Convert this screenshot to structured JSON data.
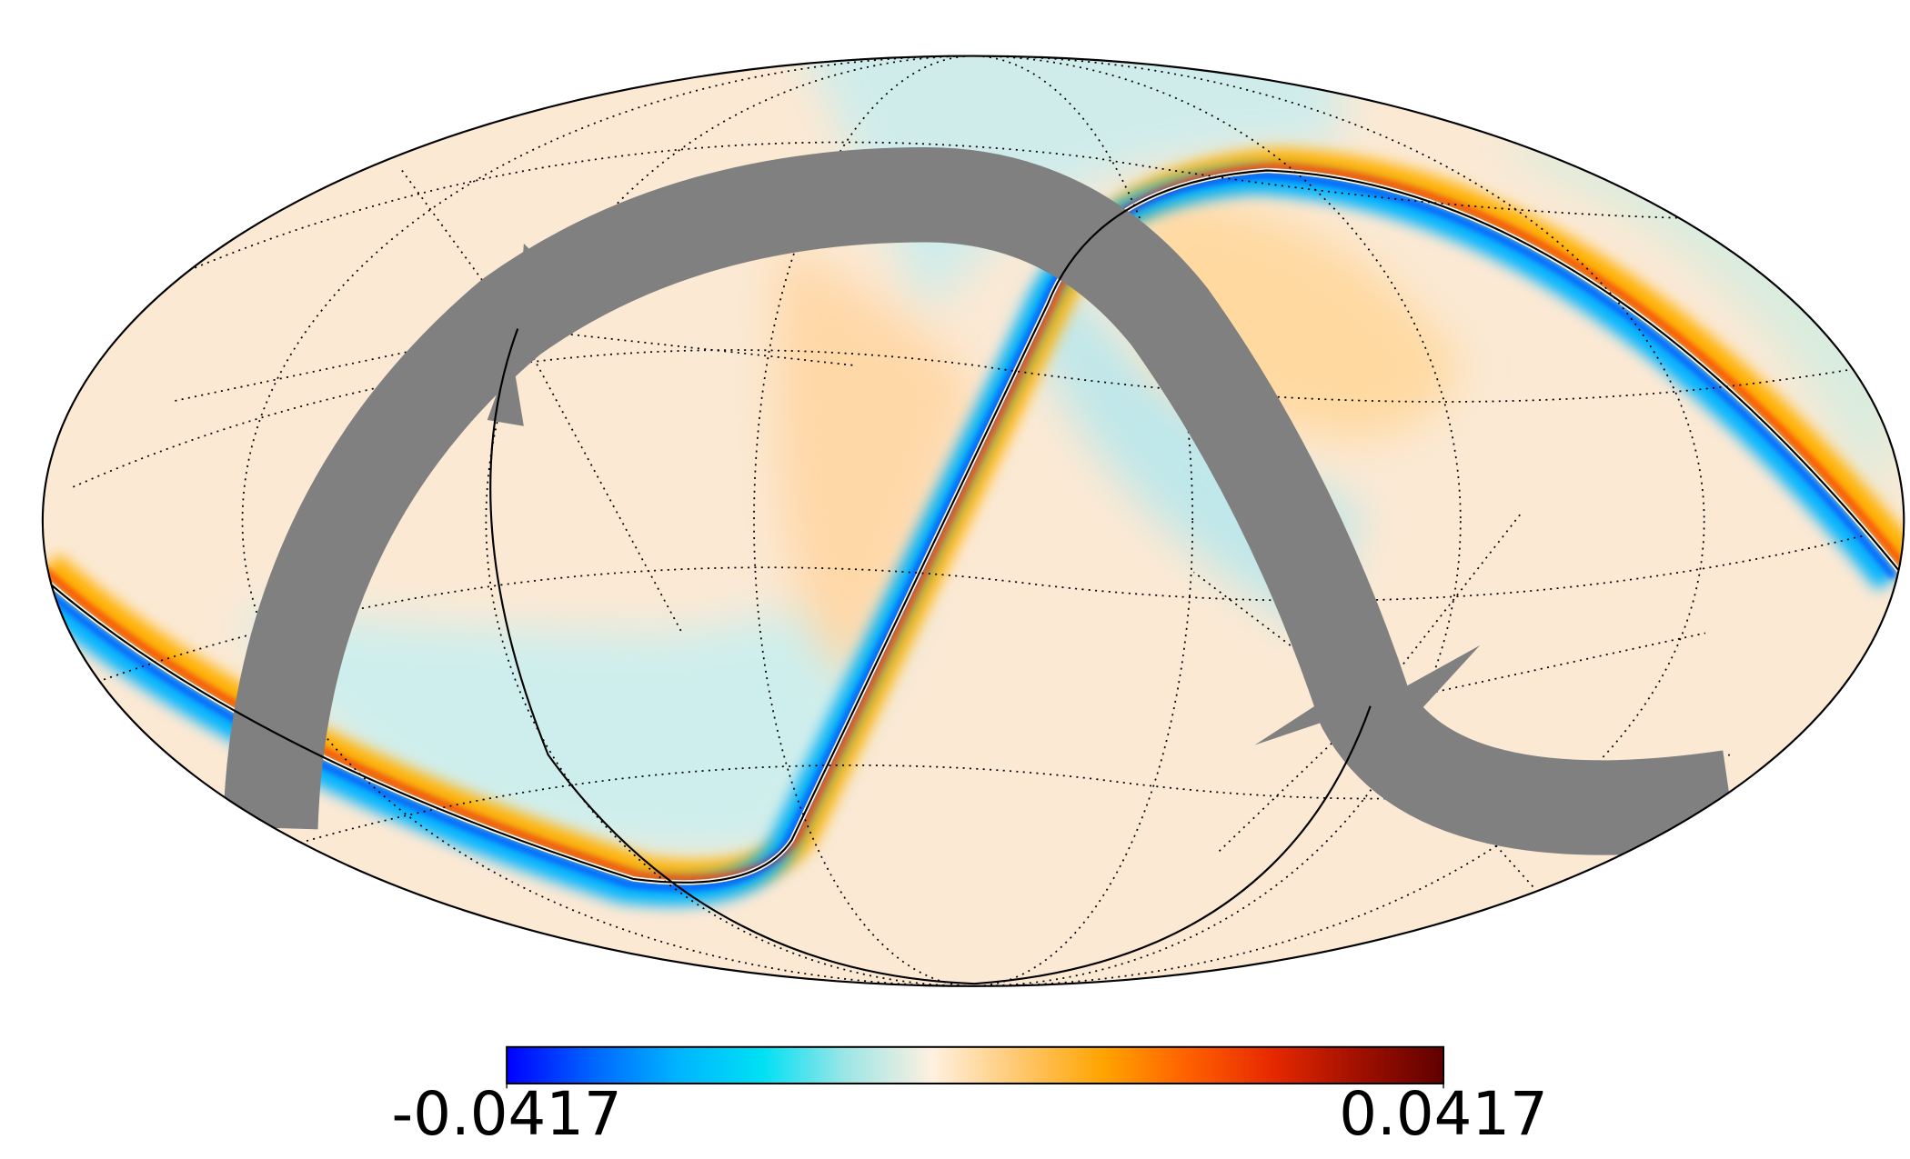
{
  "chart_data": {
    "type": "mollweide",
    "clim": [
      -0.0417,
      0.0417
    ],
    "colorbar_ticks": [
      -0.0417,
      0.0417
    ],
    "colormap": [
      "#0000ff",
      "#0064ff",
      "#00b4ff",
      "#00e0f4",
      "#9fe6e6",
      "#fff0e0",
      "#ffc870",
      "#ffa400",
      "#ff6000",
      "#e62800",
      "#a01000",
      "#600000"
    ],
    "mask_color": "#808080"
  }
}
